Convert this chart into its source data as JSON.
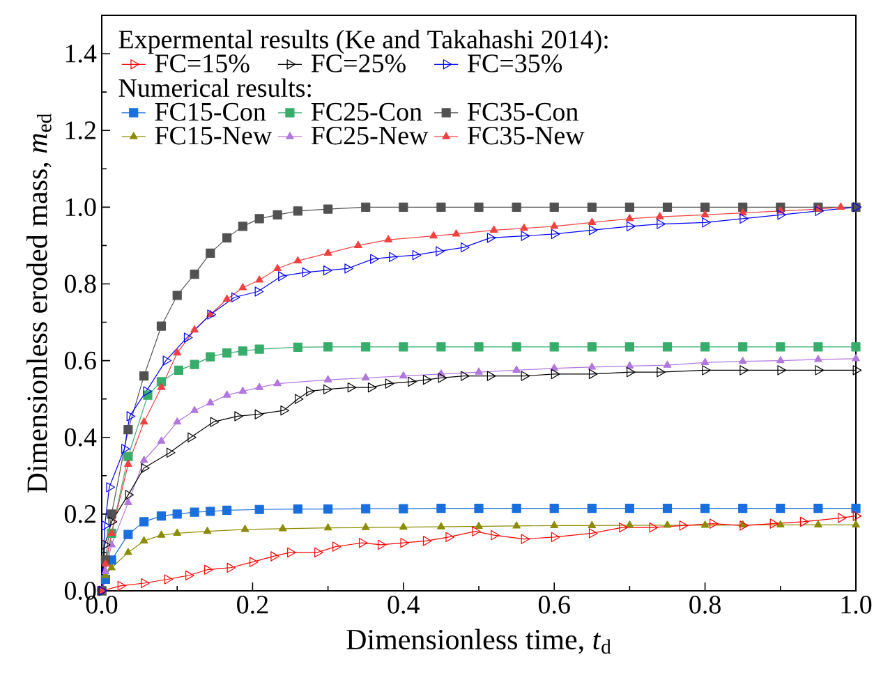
{
  "chart_data": {
    "type": "line",
    "xlabel": "Dimensionless time, *t*$_{d}$",
    "ylabel": "Dimensionless eroded mass, *m*$_{ed}$",
    "legend_title": "Expermental results (Ke and Takahashi 2014):",
    "annotations": [
      "Numerical results:"
    ],
    "xlim": [
      0,
      1
    ],
    "ylim": [
      0,
      1.5
    ],
    "xticks": [
      {
        "value": 0,
        "label": "0.0"
      },
      {
        "value": 0.2,
        "label": "0.2"
      },
      {
        "value": 0.4,
        "label": "0.4"
      },
      {
        "value": 0.6,
        "label": "0.6"
      },
      {
        "value": 0.8,
        "label": "0.8"
      },
      {
        "value": 1,
        "label": "1.0"
      }
    ],
    "yticks": [
      {
        "value": 0,
        "label": "0.0"
      },
      {
        "value": 0.2,
        "label": "0.2"
      },
      {
        "value": 0.4,
        "label": "0.4"
      },
      {
        "value": 0.6,
        "label": "0.6"
      },
      {
        "value": 0.8,
        "label": "0.8"
      },
      {
        "value": 1,
        "label": "1.0"
      },
      {
        "value": 1.2,
        "label": "1.2"
      },
      {
        "value": 1.4,
        "label": "1.4"
      }
    ],
    "legend": "top left",
    "grid": false,
    "line_style": "solid",
    "series": [
      {
        "name": "FC=15%",
        "color": "#ff0000",
        "marker": "triangle",
        "x": [
          0,
          0.025,
          0.056,
          0.087,
          0.115,
          0.14,
          0.17,
          0.2,
          0.228,
          0.25,
          0.286,
          0.31,
          0.345,
          0.37,
          0.4,
          0.43,
          0.46,
          0.495,
          0.52,
          0.56,
          0.6,
          0.65,
          0.69,
          0.73,
          0.77,
          0.81,
          0.85,
          0.89,
          0.93,
          0.98,
          1.0
        ],
        "values": [
          0,
          0.013,
          0.02,
          0.03,
          0.04,
          0.055,
          0.06,
          0.075,
          0.09,
          0.1,
          0.1,
          0.115,
          0.125,
          0.12,
          0.125,
          0.13,
          0.14,
          0.155,
          0.145,
          0.135,
          0.14,
          0.15,
          0.165,
          0.165,
          0.17,
          0.175,
          0.17,
          0.175,
          0.18,
          0.19,
          0.195
        ]
      },
      {
        "name": "FC=25%",
        "color": "#000000",
        "marker": "triangle",
        "x": [
          0,
          0.004,
          0.013,
          0.035,
          0.056,
          0.09,
          0.118,
          0.148,
          0.18,
          0.207,
          0.241,
          0.26,
          0.275,
          0.298,
          0.33,
          0.357,
          0.38,
          0.41,
          0.43,
          0.45,
          0.48,
          0.515,
          0.56,
          0.6,
          0.65,
          0.7,
          0.74,
          0.8,
          0.85,
          0.9,
          0.95,
          1.0
        ],
        "values": [
          0,
          0.12,
          0.18,
          0.25,
          0.32,
          0.36,
          0.4,
          0.44,
          0.455,
          0.46,
          0.47,
          0.5,
          0.52,
          0.525,
          0.53,
          0.53,
          0.54,
          0.545,
          0.55,
          0.555,
          0.56,
          0.56,
          0.56,
          0.565,
          0.565,
          0.57,
          0.57,
          0.575,
          0.575,
          0.575,
          0.575,
          0.575
        ]
      },
      {
        "name": "FC=35%",
        "color": "#0000ff",
        "marker": "triangle",
        "x": [
          0,
          0.004,
          0.01,
          0.03,
          0.037,
          0.059,
          0.085,
          0.113,
          0.144,
          0.176,
          0.207,
          0.238,
          0.27,
          0.298,
          0.326,
          0.36,
          0.385,
          0.416,
          0.447,
          0.48,
          0.515,
          0.56,
          0.6,
          0.65,
          0.7,
          0.74,
          0.8,
          0.85,
          0.9,
          0.95,
          1.0
        ],
        "values": [
          0,
          0.17,
          0.27,
          0.37,
          0.455,
          0.52,
          0.6,
          0.66,
          0.72,
          0.765,
          0.78,
          0.82,
          0.83,
          0.835,
          0.84,
          0.865,
          0.87,
          0.875,
          0.885,
          0.895,
          0.92,
          0.925,
          0.93,
          0.94,
          0.95,
          0.956,
          0.96,
          0.97,
          0.98,
          0.99,
          1.0
        ]
      },
      {
        "name": "FC15-Con",
        "color": "#1a6fdf",
        "marker": "square",
        "x": [
          0,
          0.005,
          0.013,
          0.035,
          0.056,
          0.079,
          0.1,
          0.123,
          0.144,
          0.166,
          0.209,
          0.26,
          0.3,
          0.35,
          0.4,
          0.45,
          0.5,
          0.55,
          0.6,
          0.65,
          0.7,
          0.75,
          0.8,
          0.85,
          0.9,
          0.95,
          1.0
        ],
        "values": [
          0,
          0.03,
          0.08,
          0.147,
          0.18,
          0.195,
          0.2,
          0.205,
          0.207,
          0.21,
          0.212,
          0.213,
          0.213,
          0.214,
          0.214,
          0.215,
          0.215,
          0.215,
          0.215,
          0.215,
          0.215,
          0.215,
          0.215,
          0.215,
          0.215,
          0.215,
          0.215
        ]
      },
      {
        "name": "FC25-Con",
        "color": "#37ad6b",
        "marker": "square",
        "x": [
          0,
          0.005,
          0.013,
          0.035,
          0.061,
          0.079,
          0.102,
          0.123,
          0.144,
          0.166,
          0.187,
          0.209,
          0.26,
          0.3,
          0.35,
          0.4,
          0.45,
          0.5,
          0.55,
          0.6,
          0.65,
          0.7,
          0.75,
          0.8,
          0.85,
          0.9,
          0.95,
          1.0
        ],
        "values": [
          0,
          null,
          0.15,
          0.35,
          0.51,
          0.545,
          0.575,
          0.59,
          0.61,
          0.62,
          0.625,
          0.63,
          0.635,
          0.636,
          0.636,
          0.636,
          0.636,
          0.636,
          0.636,
          0.636,
          0.636,
          0.636,
          0.636,
          0.636,
          0.636,
          0.636,
          0.636,
          0.636
        ]
      },
      {
        "name": "FC35-Con",
        "color": "#515151",
        "marker": "square",
        "x": [
          0,
          0.005,
          0.013,
          0.035,
          0.056,
          0.079,
          0.1,
          0.123,
          0.144,
          0.166,
          0.187,
          0.209,
          0.233,
          0.26,
          0.3,
          0.35,
          0.4,
          0.45,
          0.5,
          0.55,
          0.6,
          0.65,
          0.7,
          0.75,
          0.8,
          0.85,
          0.9,
          0.95,
          1.0
        ],
        "values": [
          0,
          0.08,
          0.2,
          0.42,
          0.56,
          0.69,
          0.77,
          0.825,
          0.88,
          0.92,
          0.95,
          0.97,
          0.98,
          0.99,
          0.995,
          1.0,
          1.0,
          1.0,
          1.0,
          1.0,
          1.0,
          1.0,
          1.0,
          1.0,
          1.0,
          1.0,
          1.0,
          1.0,
          1.0
        ]
      },
      {
        "name": "FC15-New",
        "color": "#8c8c00",
        "marker": "triangle",
        "x": [
          0,
          0.005,
          0.013,
          0.035,
          0.056,
          0.079,
          0.1,
          0.14,
          0.19,
          0.24,
          0.3,
          0.35,
          0.4,
          0.45,
          0.5,
          0.55,
          0.6,
          0.65,
          0.7,
          0.75,
          0.8,
          0.85,
          0.9,
          0.95,
          1.0
        ],
        "values": [
          0,
          0.04,
          0.06,
          0.1,
          0.13,
          0.145,
          0.15,
          0.155,
          0.16,
          0.162,
          0.164,
          0.165,
          0.166,
          0.167,
          0.168,
          0.169,
          0.17,
          0.17,
          0.171,
          0.171,
          0.171,
          0.172,
          0.172,
          0.172,
          0.172
        ]
      },
      {
        "name": "FC25-New",
        "color": "#b177de",
        "marker": "triangle",
        "x": [
          0,
          0.005,
          0.013,
          0.035,
          0.056,
          0.079,
          0.1,
          0.123,
          0.144,
          0.166,
          0.187,
          0.209,
          0.233,
          0.3,
          0.35,
          0.4,
          0.45,
          0.5,
          0.55,
          0.6,
          0.65,
          0.7,
          0.75,
          0.8,
          0.85,
          0.9,
          0.95,
          1.0
        ],
        "values": [
          0,
          0.05,
          0.12,
          0.23,
          0.34,
          0.39,
          0.44,
          0.47,
          0.49,
          0.51,
          0.52,
          0.53,
          0.54,
          0.55,
          0.555,
          0.56,
          0.565,
          0.57,
          0.575,
          0.58,
          0.583,
          0.586,
          0.588,
          0.595,
          0.598,
          0.6,
          0.603,
          0.605
        ]
      },
      {
        "name": "FC35-New",
        "color": "#f14040",
        "marker": "triangle",
        "x": [
          0,
          0.005,
          0.013,
          0.035,
          0.056,
          0.079,
          0.1,
          0.123,
          0.144,
          0.166,
          0.187,
          0.209,
          0.233,
          0.26,
          0.3,
          0.34,
          0.38,
          0.44,
          0.47,
          0.52,
          0.56,
          0.6,
          0.65,
          0.7,
          0.74,
          0.8,
          0.85,
          0.9,
          0.95,
          0.98
        ],
        "values": [
          0,
          0.07,
          0.15,
          0.33,
          0.44,
          0.53,
          0.62,
          0.68,
          0.72,
          0.76,
          0.79,
          0.81,
          0.84,
          0.86,
          0.88,
          0.9,
          0.915,
          0.925,
          0.93,
          0.94,
          0.945,
          0.95,
          0.96,
          0.97,
          0.975,
          0.98,
          0.985,
          0.99,
          0.995,
          1.0
        ]
      }
    ]
  }
}
